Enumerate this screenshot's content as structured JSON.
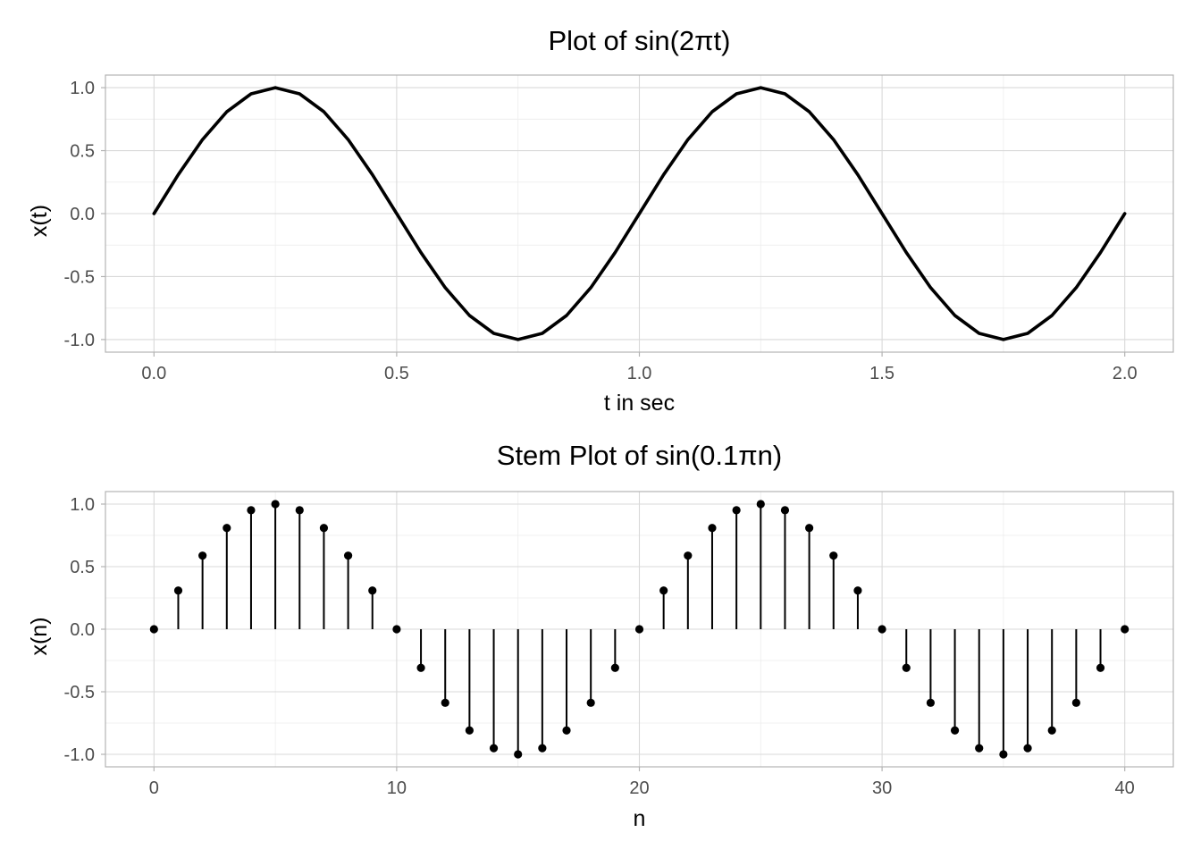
{
  "chart_data": [
    {
      "type": "line",
      "title": "Plot of sin(2πt)",
      "xlabel": "t in sec",
      "ylabel": "x(t)",
      "xlim": [
        -0.1,
        2.1
      ],
      "ylim": [
        -1.1,
        1.1
      ],
      "x_ticks": [
        0.0,
        0.5,
        1.0,
        1.5,
        2.0
      ],
      "x_tick_labels": [
        "0.0",
        "0.5",
        "1.0",
        "1.5",
        "2.0"
      ],
      "y_ticks": [
        -1.0,
        -0.5,
        0.0,
        0.5,
        1.0
      ],
      "y_tick_labels": [
        "-1.0",
        "-0.5",
        "0.0",
        "0.5",
        "1.0"
      ],
      "grid": true,
      "line_color": "#000000",
      "x": [
        0.0,
        0.05,
        0.1,
        0.15,
        0.2,
        0.25,
        0.3,
        0.35,
        0.4,
        0.45,
        0.5,
        0.55,
        0.6,
        0.65,
        0.7,
        0.75,
        0.8,
        0.85,
        0.9,
        0.95,
        1.0,
        1.05,
        1.1,
        1.15,
        1.2,
        1.25,
        1.3,
        1.35,
        1.4,
        1.45,
        1.5,
        1.55,
        1.6,
        1.65,
        1.7,
        1.75,
        1.8,
        1.85,
        1.9,
        1.95,
        2.0
      ],
      "values": [
        0.0,
        0.309,
        0.588,
        0.809,
        0.951,
        1.0,
        0.951,
        0.809,
        0.588,
        0.309,
        0.0,
        -0.309,
        -0.588,
        -0.809,
        -0.951,
        -1.0,
        -0.951,
        -0.809,
        -0.588,
        -0.309,
        0.0,
        0.309,
        0.588,
        0.809,
        0.951,
        1.0,
        0.951,
        0.809,
        0.588,
        0.309,
        0.0,
        -0.309,
        -0.588,
        -0.809,
        -0.951,
        -1.0,
        -0.951,
        -0.809,
        -0.588,
        -0.309,
        0.0
      ]
    },
    {
      "type": "scatter",
      "style": "stem",
      "title": "Stem Plot of sin(0.1πn)",
      "xlabel": "n",
      "ylabel": "x(n)",
      "xlim": [
        -2,
        42
      ],
      "ylim": [
        -1.1,
        1.1
      ],
      "x_ticks": [
        0,
        10,
        20,
        30,
        40
      ],
      "x_tick_labels": [
        "0",
        "10",
        "20",
        "30",
        "40"
      ],
      "y_ticks": [
        -1.0,
        -0.5,
        0.0,
        0.5,
        1.0
      ],
      "y_tick_labels": [
        "-1.0",
        "-0.5",
        "0.0",
        "0.5",
        "1.0"
      ],
      "grid": true,
      "marker_color": "#000000",
      "x": [
        0,
        1,
        2,
        3,
        4,
        5,
        6,
        7,
        8,
        9,
        10,
        11,
        12,
        13,
        14,
        15,
        16,
        17,
        18,
        19,
        20,
        21,
        22,
        23,
        24,
        25,
        26,
        27,
        28,
        29,
        30,
        31,
        32,
        33,
        34,
        35,
        36,
        37,
        38,
        39,
        40
      ],
      "values": [
        0.0,
        0.309,
        0.588,
        0.809,
        0.951,
        1.0,
        0.951,
        0.809,
        0.588,
        0.309,
        0.0,
        -0.309,
        -0.588,
        -0.809,
        -0.951,
        -1.0,
        -0.951,
        -0.809,
        -0.588,
        -0.309,
        0.0,
        0.309,
        0.588,
        0.809,
        0.951,
        1.0,
        0.951,
        0.809,
        0.588,
        0.309,
        0.0,
        -0.309,
        -0.588,
        -0.809,
        -0.951,
        -1.0,
        -0.951,
        -0.809,
        -0.588,
        -0.309,
        0.0
      ]
    }
  ]
}
